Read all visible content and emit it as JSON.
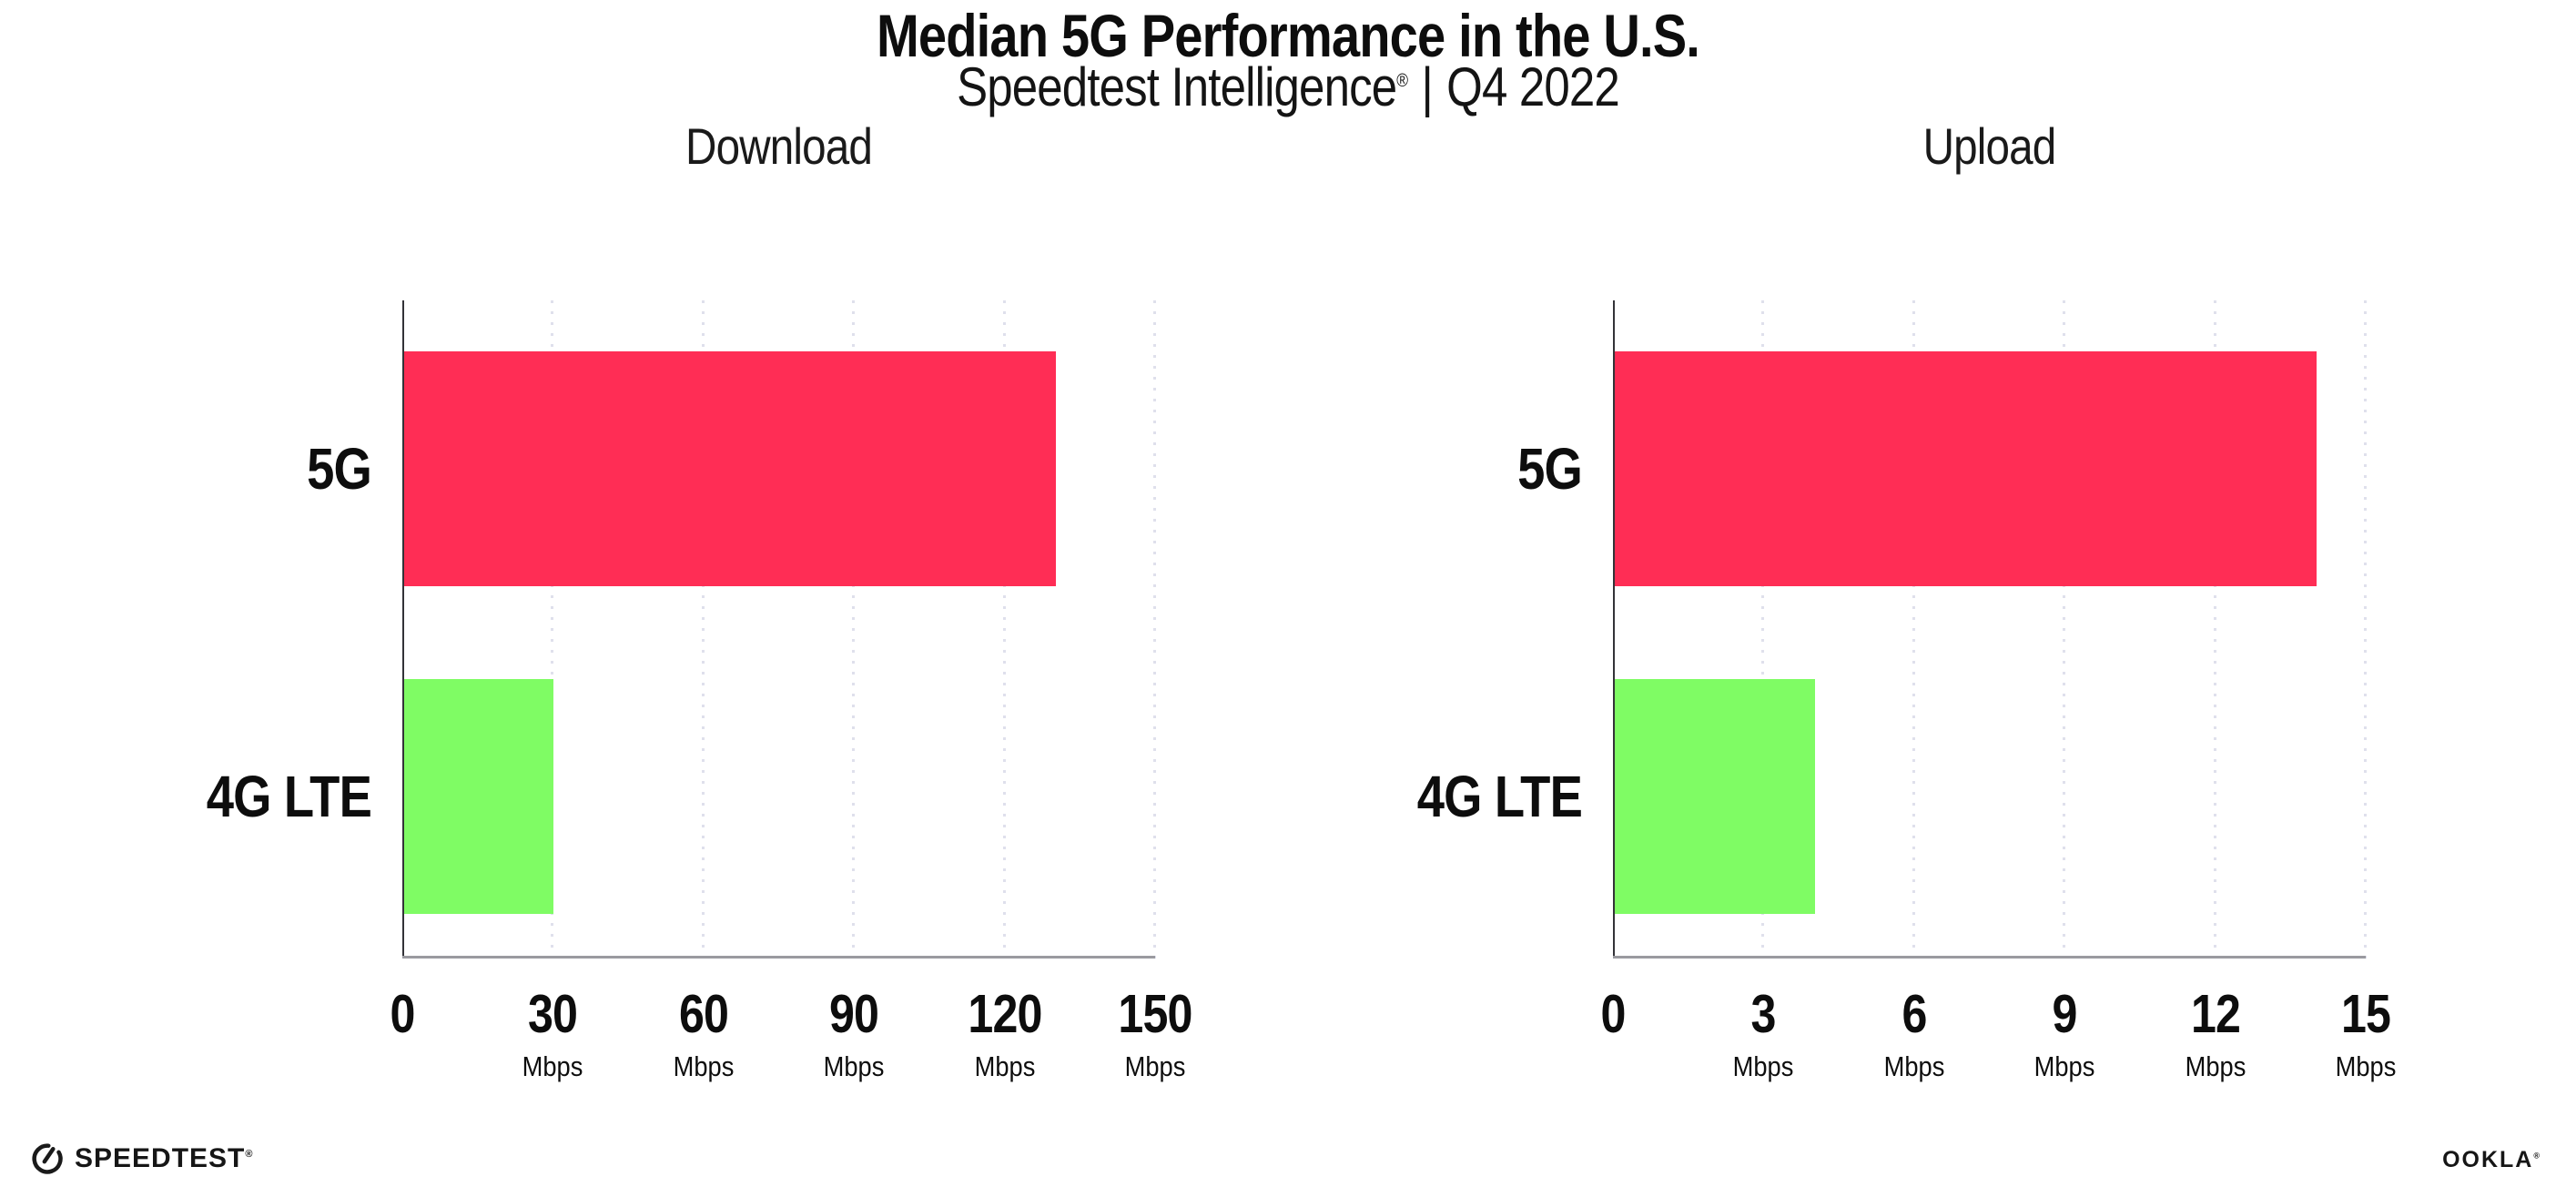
{
  "header": {
    "title": "Median 5G Performance in the U.S.",
    "subtitle_brand": "Speedtest Intelligence",
    "subtitle_regmark": "®",
    "subtitle_separator": "|",
    "subtitle_period": "Q4 2022"
  },
  "chart_data": [
    {
      "type": "bar",
      "orientation": "horizontal",
      "title": "Download",
      "categories": [
        "5G",
        "4G LTE"
      ],
      "values": [
        130,
        30
      ],
      "unit": "Mbps",
      "xlim": [
        0,
        150
      ],
      "xticks": [
        0,
        30,
        60,
        90,
        120,
        150
      ],
      "bar_colors": [
        "#FF2D55",
        "#7FFC64"
      ],
      "grid": "vertical-dotted",
      "legend": "none"
    },
    {
      "type": "bar",
      "orientation": "horizontal",
      "title": "Upload",
      "categories": [
        "5G",
        "4G LTE"
      ],
      "values": [
        14,
        4
      ],
      "unit": "Mbps",
      "xlim": [
        0,
        15
      ],
      "xticks": [
        0,
        3,
        6,
        9,
        12,
        15
      ],
      "bar_colors": [
        "#FF2D55",
        "#7FFC64"
      ],
      "grid": "vertical-dotted",
      "legend": "none"
    }
  ],
  "footer": {
    "speedtest_label": "SPEEDTEST",
    "speedtest_regmark": "®",
    "ookla_label": "OOKLA",
    "ookla_regmark": "®"
  },
  "colors": {
    "bar_5g": "#FF2D55",
    "bar_4g_lte": "#7FFC64",
    "x_axis_line": "#9A9AA0",
    "y_axis_line": "#333338",
    "gridline_dots": "#DFE0EC",
    "text": "#111111",
    "background": "#FFFFFF"
  }
}
